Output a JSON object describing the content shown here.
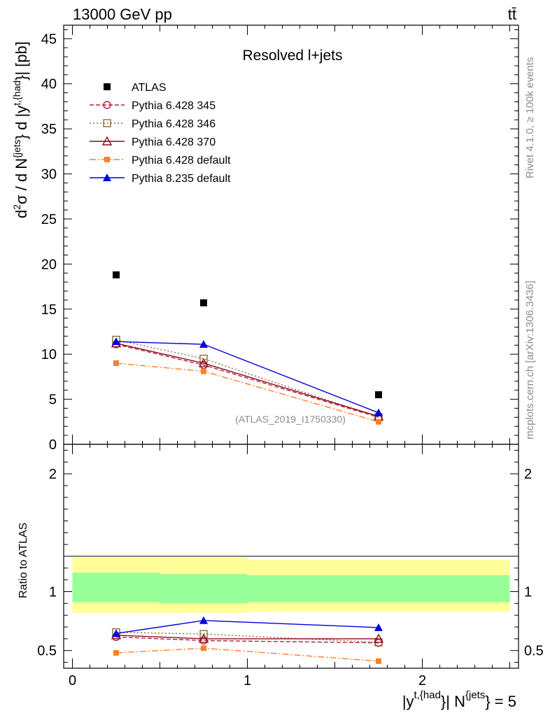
{
  "header": {
    "energy_label": "13000 GeV pp",
    "process_label": "tt̄"
  },
  "side": {
    "rivet_label": "Rivet 4.1.0, ≥ 100k events",
    "mcplots_label": "mcplots.cern.ch [arXiv:1306.3436]"
  },
  "colors": {
    "atlas": "#000000",
    "py345": "#b2223c",
    "py346": "#8a6a3a",
    "py370": "#8b0a1a",
    "py6def": "#ff7f2a",
    "py8def": "#0000dd",
    "band_outer": "#ffff99",
    "band_inner": "#99ff99"
  },
  "chart_data": {
    "type": "line",
    "title": "Resolved l+jets",
    "analysis_id": "(ATLAS_2019_I1750330)",
    "xlabel_parts": {
      "y_base": "|y",
      "y_sup": "t,{had",
      "y_close": "}| N",
      "n_sup": "{jets",
      "n_close": "} = 5"
    },
    "ylabel_parts": {
      "d2": "d",
      "sup2": "2",
      "sigma_mid": "σ / d N",
      "sup_jets": "{jets",
      "mid2": "} d |y",
      "sup_had": "t,{had",
      "tail": "}| [pb]"
    },
    "ratio_ylabel": "Ratio to ATLAS",
    "xlim": [
      -0.05,
      2.55
    ],
    "ylim": [
      0,
      46.5
    ],
    "ratio_ylim": [
      0.35,
      2.25
    ],
    "x_ticks": [
      0,
      1,
      2
    ],
    "y_ticks": [
      0,
      5,
      10,
      15,
      20,
      25,
      30,
      35,
      40,
      45
    ],
    "ratio_ticks": [
      0.5,
      1,
      2
    ],
    "x": [
      0.25,
      0.75,
      1.75
    ],
    "bin_edges": [
      0,
      0.5,
      1,
      2.5
    ],
    "atlas": {
      "name": "ATLAS",
      "values": [
        18.8,
        15.7,
        5.5
      ]
    },
    "series": [
      {
        "key": "py345",
        "name": "Pythia 6.428 345",
        "values": [
          11.1,
          8.8,
          3.0
        ],
        "ratio": [
          0.615,
          0.585,
          0.565
        ]
      },
      {
        "key": "py346",
        "name": "Pythia 6.428 346",
        "values": [
          11.6,
          9.5,
          3.0
        ],
        "ratio": [
          0.655,
          0.64,
          0.57
        ]
      },
      {
        "key": "py370",
        "name": "Pythia 6.428 370",
        "values": [
          11.2,
          9.0,
          3.1
        ],
        "ratio": [
          0.63,
          0.6,
          0.6
        ]
      },
      {
        "key": "py6def",
        "name": "Pythia 6.428 default",
        "values": [
          9.0,
          8.1,
          2.5
        ],
        "ratio": [
          0.48,
          0.52,
          0.41
        ]
      },
      {
        "key": "py8def",
        "name": "Pythia 8.235 default",
        "values": [
          11.4,
          11.1,
          3.5
        ],
        "ratio": [
          0.645,
          0.755,
          0.695
        ]
      }
    ],
    "band_outer": [
      [
        0.82,
        1.29
      ],
      [
        0.82,
        1.29
      ],
      [
        0.83,
        1.27
      ]
    ],
    "band_inner": [
      [
        0.91,
        1.16
      ],
      [
        0.9,
        1.15
      ],
      [
        0.91,
        1.14
      ]
    ]
  }
}
